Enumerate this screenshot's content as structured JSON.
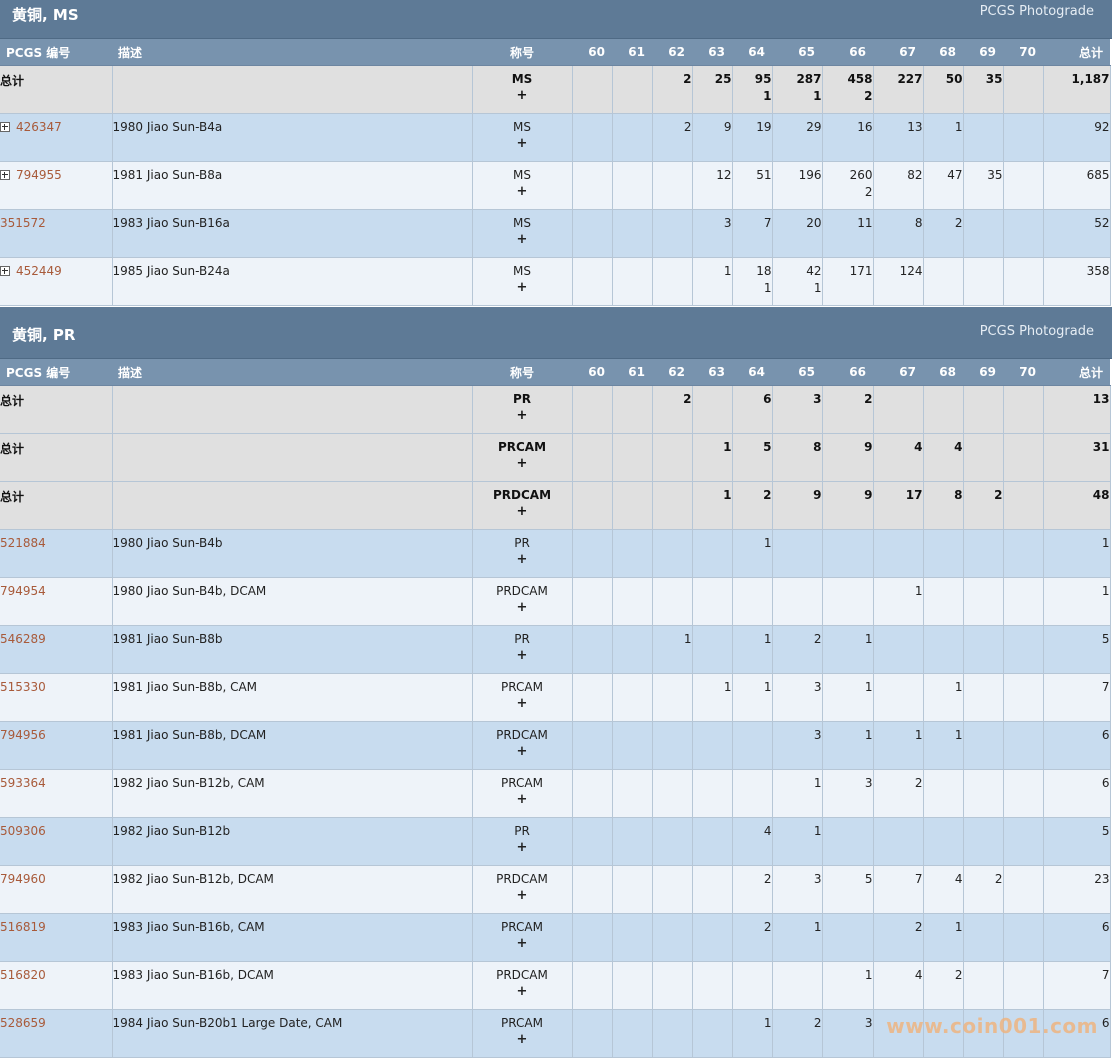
{
  "sections": [
    {
      "title": "黄铜, MS",
      "photograde": "PCGS Photograde",
      "columns": [
        "PCGS 编号",
        "描述",
        "称号",
        "60",
        "61",
        "62",
        "63",
        "64",
        "65",
        "66",
        "67",
        "68",
        "69",
        "70",
        "总计"
      ],
      "rows": [
        {
          "type": "total",
          "code": "总计",
          "desc": "",
          "grade": "MS",
          "plus": "+",
          "cells": [
            [
              "",
              ""
            ],
            [
              "",
              ""
            ],
            [
              "2",
              ""
            ],
            [
              "25",
              ""
            ],
            [
              "95",
              "1"
            ],
            [
              "287",
              "1"
            ],
            [
              "458",
              "2"
            ],
            [
              "227",
              ""
            ],
            [
              "50",
              ""
            ],
            [
              "35",
              ""
            ],
            [
              "",
              ""
            ]
          ],
          "total": "1,187",
          "expand": false
        },
        {
          "type": "data",
          "code": "426347",
          "desc": "1980 Jiao Sun-B4a",
          "grade": "MS",
          "plus": "+",
          "cells": [
            [
              "",
              ""
            ],
            [
              "",
              ""
            ],
            [
              "2",
              ""
            ],
            [
              "9",
              ""
            ],
            [
              "19",
              ""
            ],
            [
              "29",
              ""
            ],
            [
              "16",
              ""
            ],
            [
              "13",
              ""
            ],
            [
              "1",
              ""
            ],
            [
              "",
              ""
            ],
            [
              "",
              ""
            ]
          ],
          "total": "92",
          "expand": true
        },
        {
          "type": "data",
          "code": "794955",
          "desc": "1981 Jiao Sun-B8a",
          "grade": "MS",
          "plus": "+",
          "cells": [
            [
              "",
              ""
            ],
            [
              "",
              ""
            ],
            [
              "",
              ""
            ],
            [
              "12",
              ""
            ],
            [
              "51",
              ""
            ],
            [
              "196",
              ""
            ],
            [
              "260",
              "2"
            ],
            [
              "82",
              ""
            ],
            [
              "47",
              ""
            ],
            [
              "35",
              ""
            ],
            [
              "",
              ""
            ]
          ],
          "total": "685",
          "expand": true
        },
        {
          "type": "data",
          "code": "351572",
          "desc": "1983 Jiao Sun-B16a",
          "grade": "MS",
          "plus": "+",
          "cells": [
            [
              "",
              ""
            ],
            [
              "",
              ""
            ],
            [
              "",
              ""
            ],
            [
              "3",
              ""
            ],
            [
              "7",
              ""
            ],
            [
              "20",
              ""
            ],
            [
              "11",
              ""
            ],
            [
              "8",
              ""
            ],
            [
              "2",
              ""
            ],
            [
              "",
              ""
            ],
            [
              "",
              ""
            ]
          ],
          "total": "52",
          "expand": false
        },
        {
          "type": "data",
          "code": "452449",
          "desc": "1985 Jiao Sun-B24a",
          "grade": "MS",
          "plus": "+",
          "cells": [
            [
              "",
              ""
            ],
            [
              "",
              ""
            ],
            [
              "",
              ""
            ],
            [
              "1",
              ""
            ],
            [
              "18",
              "1"
            ],
            [
              "42",
              "1"
            ],
            [
              "171",
              ""
            ],
            [
              "124",
              ""
            ],
            [
              "",
              ""
            ],
            [
              "",
              ""
            ],
            [
              "",
              ""
            ]
          ],
          "total": "358",
          "expand": true
        }
      ]
    },
    {
      "title": "黄铜, PR",
      "photograde": "PCGS Photograde",
      "columns": [
        "PCGS 编号",
        "描述",
        "称号",
        "60",
        "61",
        "62",
        "63",
        "64",
        "65",
        "66",
        "67",
        "68",
        "69",
        "70",
        "总计"
      ],
      "rows": [
        {
          "type": "total",
          "code": "总计",
          "desc": "",
          "grade": "PR",
          "plus": "+",
          "cells": [
            [
              "",
              ""
            ],
            [
              "",
              ""
            ],
            [
              "2",
              ""
            ],
            [
              "",
              ""
            ],
            [
              "6",
              ""
            ],
            [
              "3",
              ""
            ],
            [
              "2",
              ""
            ],
            [
              "",
              ""
            ],
            [
              "",
              ""
            ],
            [
              "",
              ""
            ],
            [
              "",
              ""
            ]
          ],
          "total": "13",
          "expand": false
        },
        {
          "type": "total",
          "code": "总计",
          "desc": "",
          "grade": "PRCAM",
          "plus": "+",
          "cells": [
            [
              "",
              ""
            ],
            [
              "",
              ""
            ],
            [
              "",
              ""
            ],
            [
              "1",
              ""
            ],
            [
              "5",
              ""
            ],
            [
              "8",
              ""
            ],
            [
              "9",
              ""
            ],
            [
              "4",
              ""
            ],
            [
              "4",
              ""
            ],
            [
              "",
              ""
            ],
            [
              "",
              ""
            ]
          ],
          "total": "31",
          "expand": false
        },
        {
          "type": "total",
          "code": "总计",
          "desc": "",
          "grade": "PRDCAM",
          "plus": "+",
          "cells": [
            [
              "",
              ""
            ],
            [
              "",
              ""
            ],
            [
              "",
              ""
            ],
            [
              "1",
              ""
            ],
            [
              "2",
              ""
            ],
            [
              "9",
              ""
            ],
            [
              "9",
              ""
            ],
            [
              "17",
              ""
            ],
            [
              "8",
              ""
            ],
            [
              "2",
              ""
            ],
            [
              "",
              ""
            ]
          ],
          "total": "48",
          "expand": false
        },
        {
          "type": "data",
          "code": "521884",
          "desc": "1980 Jiao Sun-B4b",
          "grade": "PR",
          "plus": "+",
          "cells": [
            [
              "",
              ""
            ],
            [
              "",
              ""
            ],
            [
              "",
              ""
            ],
            [
              "",
              ""
            ],
            [
              "1",
              ""
            ],
            [
              "",
              ""
            ],
            [
              "",
              ""
            ],
            [
              "",
              ""
            ],
            [
              "",
              ""
            ],
            [
              "",
              ""
            ],
            [
              "",
              ""
            ]
          ],
          "total": "1",
          "expand": false
        },
        {
          "type": "data",
          "code": "794954",
          "desc": "1980 Jiao Sun-B4b, DCAM",
          "grade": "PRDCAM",
          "plus": "+",
          "cells": [
            [
              "",
              ""
            ],
            [
              "",
              ""
            ],
            [
              "",
              ""
            ],
            [
              "",
              ""
            ],
            [
              "",
              ""
            ],
            [
              "",
              ""
            ],
            [
              "",
              ""
            ],
            [
              "1",
              ""
            ],
            [
              "",
              ""
            ],
            [
              "",
              ""
            ],
            [
              "",
              ""
            ]
          ],
          "total": "1",
          "expand": false
        },
        {
          "type": "data",
          "code": "546289",
          "desc": "1981 Jiao Sun-B8b",
          "grade": "PR",
          "plus": "+",
          "cells": [
            [
              "",
              ""
            ],
            [
              "",
              ""
            ],
            [
              "1",
              ""
            ],
            [
              "",
              ""
            ],
            [
              "1",
              ""
            ],
            [
              "2",
              ""
            ],
            [
              "1",
              ""
            ],
            [
              "",
              ""
            ],
            [
              "",
              ""
            ],
            [
              "",
              ""
            ],
            [
              "",
              ""
            ]
          ],
          "total": "5",
          "expand": false
        },
        {
          "type": "data",
          "code": "515330",
          "desc": "1981 Jiao Sun-B8b, CAM",
          "grade": "PRCAM",
          "plus": "+",
          "cells": [
            [
              "",
              ""
            ],
            [
              "",
              ""
            ],
            [
              "",
              ""
            ],
            [
              "1",
              ""
            ],
            [
              "1",
              ""
            ],
            [
              "3",
              ""
            ],
            [
              "1",
              ""
            ],
            [
              "",
              ""
            ],
            [
              "1",
              ""
            ],
            [
              "",
              ""
            ],
            [
              "",
              ""
            ]
          ],
          "total": "7",
          "expand": false
        },
        {
          "type": "data",
          "code": "794956",
          "desc": "1981 Jiao Sun-B8b, DCAM",
          "grade": "PRDCAM",
          "plus": "+",
          "cells": [
            [
              "",
              ""
            ],
            [
              "",
              ""
            ],
            [
              "",
              ""
            ],
            [
              "",
              ""
            ],
            [
              "",
              ""
            ],
            [
              "3",
              ""
            ],
            [
              "1",
              ""
            ],
            [
              "1",
              ""
            ],
            [
              "1",
              ""
            ],
            [
              "",
              ""
            ],
            [
              "",
              ""
            ]
          ],
          "total": "6",
          "expand": false
        },
        {
          "type": "data",
          "code": "593364",
          "desc": "1982 Jiao Sun-B12b, CAM",
          "grade": "PRCAM",
          "plus": "+",
          "cells": [
            [
              "",
              ""
            ],
            [
              "",
              ""
            ],
            [
              "",
              ""
            ],
            [
              "",
              ""
            ],
            [
              "",
              ""
            ],
            [
              "1",
              ""
            ],
            [
              "3",
              ""
            ],
            [
              "2",
              ""
            ],
            [
              "",
              ""
            ],
            [
              "",
              ""
            ],
            [
              "",
              ""
            ]
          ],
          "total": "6",
          "expand": false
        },
        {
          "type": "data",
          "code": "509306",
          "desc": "1982 Jiao Sun-B12b",
          "grade": "PR",
          "plus": "+",
          "cells": [
            [
              "",
              ""
            ],
            [
              "",
              ""
            ],
            [
              "",
              ""
            ],
            [
              "",
              ""
            ],
            [
              "4",
              ""
            ],
            [
              "1",
              ""
            ],
            [
              "",
              ""
            ],
            [
              "",
              ""
            ],
            [
              "",
              ""
            ],
            [
              "",
              ""
            ],
            [
              "",
              ""
            ]
          ],
          "total": "5",
          "expand": false
        },
        {
          "type": "data",
          "code": "794960",
          "desc": "1982 Jiao Sun-B12b, DCAM",
          "grade": "PRDCAM",
          "plus": "+",
          "cells": [
            [
              "",
              ""
            ],
            [
              "",
              ""
            ],
            [
              "",
              ""
            ],
            [
              "",
              ""
            ],
            [
              "2",
              ""
            ],
            [
              "3",
              ""
            ],
            [
              "5",
              ""
            ],
            [
              "7",
              ""
            ],
            [
              "4",
              ""
            ],
            [
              "2",
              ""
            ],
            [
              "",
              ""
            ]
          ],
          "total": "23",
          "expand": false
        },
        {
          "type": "data",
          "code": "516819",
          "desc": "1983 Jiao Sun-B16b, CAM",
          "grade": "PRCAM",
          "plus": "+",
          "cells": [
            [
              "",
              ""
            ],
            [
              "",
              ""
            ],
            [
              "",
              ""
            ],
            [
              "",
              ""
            ],
            [
              "2",
              ""
            ],
            [
              "1",
              ""
            ],
            [
              "",
              ""
            ],
            [
              "2",
              ""
            ],
            [
              "1",
              ""
            ],
            [
              "",
              ""
            ],
            [
              "",
              ""
            ]
          ],
          "total": "6",
          "expand": false
        },
        {
          "type": "data",
          "code": "516820",
          "desc": "1983 Jiao Sun-B16b, DCAM",
          "grade": "PRDCAM",
          "plus": "+",
          "cells": [
            [
              "",
              ""
            ],
            [
              "",
              ""
            ],
            [
              "",
              ""
            ],
            [
              "",
              ""
            ],
            [
              "",
              ""
            ],
            [
              "",
              ""
            ],
            [
              "1",
              ""
            ],
            [
              "4",
              ""
            ],
            [
              "2",
              ""
            ],
            [
              "",
              ""
            ],
            [
              "",
              ""
            ]
          ],
          "total": "7",
          "expand": false
        },
        {
          "type": "data",
          "code": "528659",
          "desc": "1984 Jiao Sun-B20b1 Large Date, CAM",
          "grade": "PRCAM",
          "plus": "+",
          "cells": [
            [
              "",
              ""
            ],
            [
              "",
              ""
            ],
            [
              "",
              ""
            ],
            [
              "",
              ""
            ],
            [
              "1",
              ""
            ],
            [
              "2",
              ""
            ],
            [
              "3",
              ""
            ],
            [
              "",
              ""
            ],
            [
              "",
              ""
            ],
            [
              "",
              ""
            ],
            [
              "",
              ""
            ]
          ],
          "total": "6",
          "expand": false
        }
      ]
    }
  ],
  "watermark": "www.coin001.com"
}
